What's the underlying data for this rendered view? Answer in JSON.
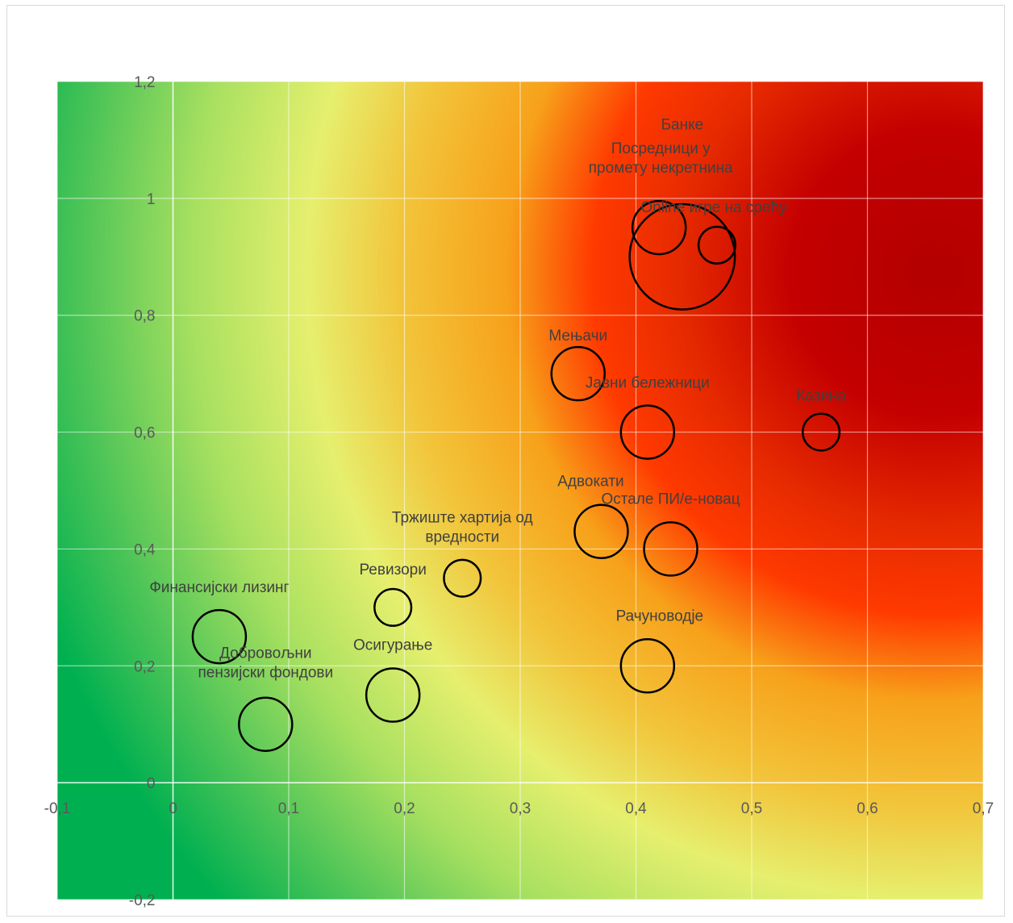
{
  "chart_data": {
    "type": "scatter",
    "subtype": "bubble",
    "title": "",
    "xlabel": "",
    "ylabel": "",
    "xlim": [
      -0.1,
      0.7
    ],
    "ylim": [
      -0.2,
      1.2
    ],
    "x_ticks": [
      "-0,1",
      "0",
      "0,1",
      "0,2",
      "0,3",
      "0,4",
      "0,5",
      "0,6",
      "0,7"
    ],
    "y_ticks": [
      "-0,2",
      "0",
      "0,2",
      "0,4",
      "0,6",
      "0,8",
      "1",
      "1,2"
    ],
    "grid": true,
    "background": "heatmap gradient green (low) → yellow → orange → red (high), centered near upper right",
    "colors": {
      "green": "#00b050",
      "yellow": "#e6ef6e",
      "orange": "#f7a11a",
      "red": "#c00000",
      "bubble_outline": "#000000"
    },
    "points": [
      {
        "label": "Банке",
        "x": 0.44,
        "y": 0.9,
        "size": 9.0
      },
      {
        "label": "Посредници у промету некретнина",
        "x": 0.42,
        "y": 0.95,
        "size": 2.3
      },
      {
        "label": "Online игре на срећу",
        "x": 0.47,
        "y": 0.92,
        "size": 1.1
      },
      {
        "label": "Мењачи",
        "x": 0.35,
        "y": 0.7,
        "size": 2.3
      },
      {
        "label": "Јавни бележници",
        "x": 0.41,
        "y": 0.6,
        "size": 2.3
      },
      {
        "label": "Казина",
        "x": 0.56,
        "y": 0.6,
        "size": 1.1
      },
      {
        "label": "Адвокати",
        "x": 0.37,
        "y": 0.43,
        "size": 2.3
      },
      {
        "label": "Остале ПИ/е-новац",
        "x": 0.43,
        "y": 0.4,
        "size": 2.3
      },
      {
        "label": "Тржиште хартија од вредности",
        "x": 0.25,
        "y": 0.35,
        "size": 1.1
      },
      {
        "label": "Ревизори",
        "x": 0.19,
        "y": 0.3,
        "size": 1.1
      },
      {
        "label": "Финансијски лизинг",
        "x": 0.04,
        "y": 0.25,
        "size": 2.3
      },
      {
        "label": "Рачуноводје",
        "x": 0.41,
        "y": 0.2,
        "size": 2.3
      },
      {
        "label": "Осигурање",
        "x": 0.19,
        "y": 0.15,
        "size": 2.3
      },
      {
        "label": "Добровољни пензијски фондови",
        "x": 0.08,
        "y": 0.1,
        "size": 2.3
      }
    ]
  }
}
